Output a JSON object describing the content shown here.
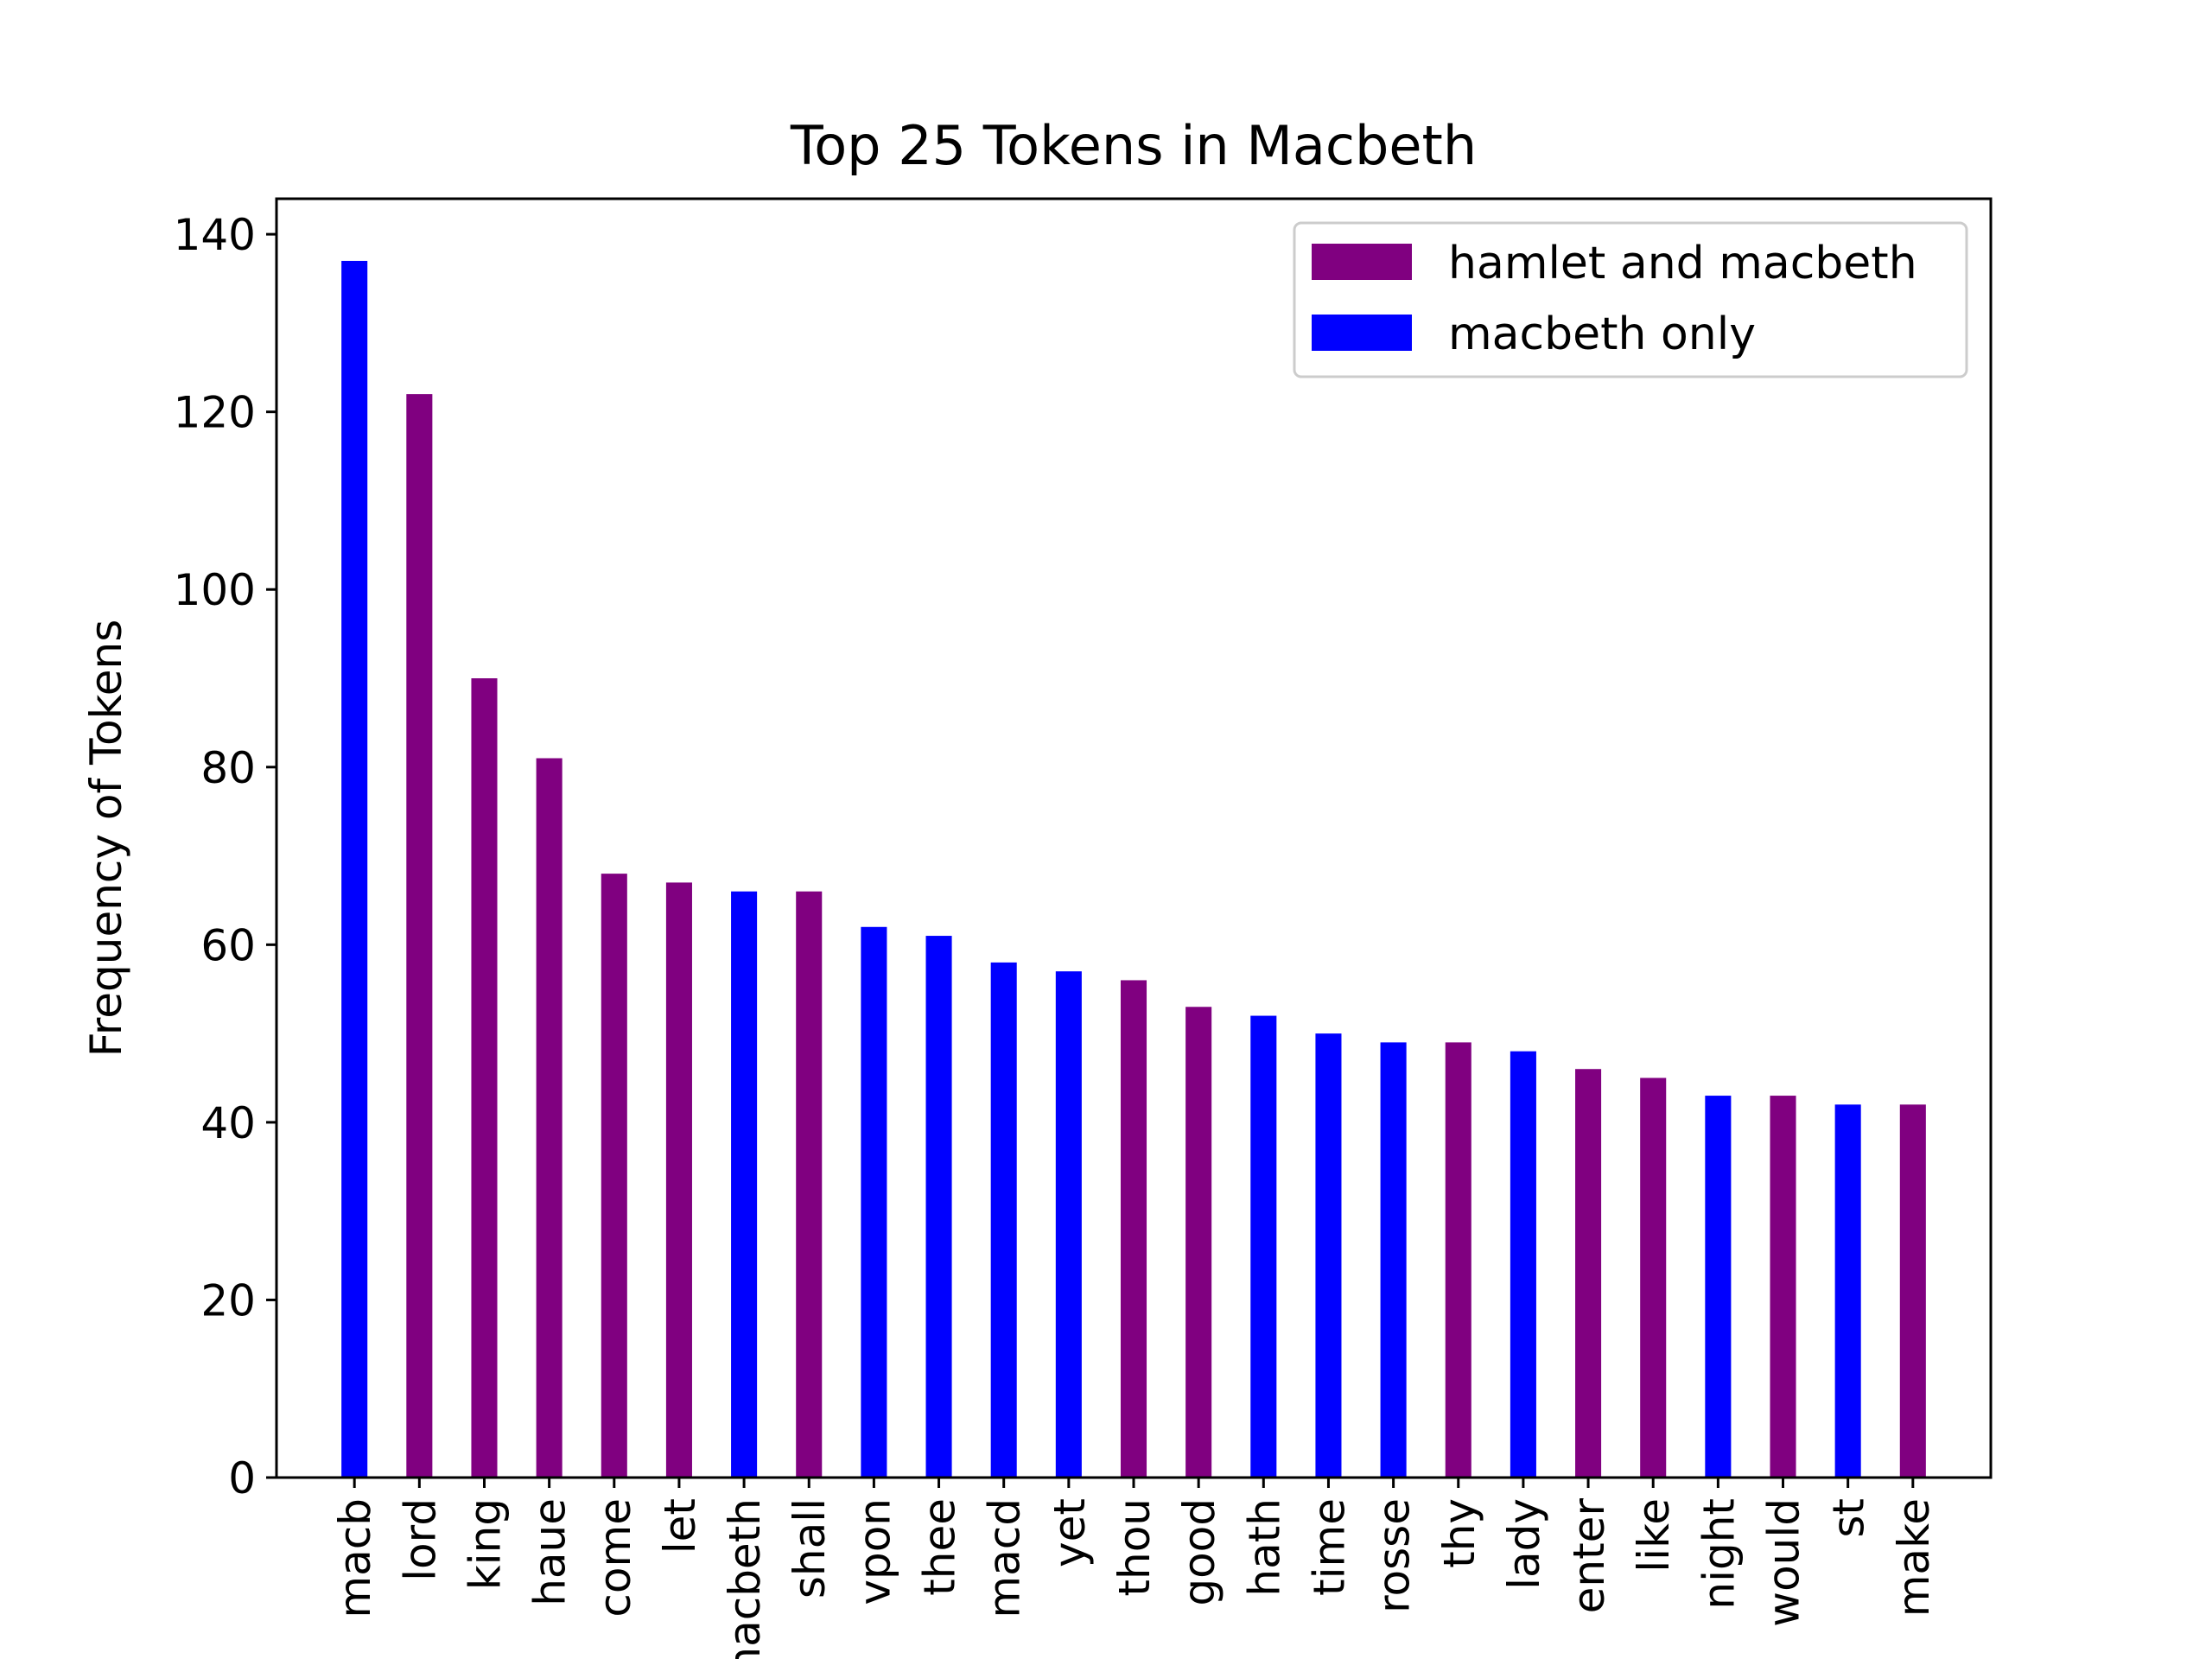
{
  "chart_data": {
    "type": "bar",
    "title": "Top 25 Tokens in Macbeth",
    "xlabel": "",
    "ylabel": "Frequency of Tokens",
    "ylim": [
      0,
      144
    ],
    "yticks": [
      0,
      20,
      40,
      60,
      80,
      100,
      120,
      140
    ],
    "categories": [
      "macb",
      "lord",
      "king",
      "haue",
      "come",
      "let",
      "macbeth",
      "shall",
      "vpon",
      "thee",
      "macd",
      "yet",
      "thou",
      "good",
      "hath",
      "time",
      "rosse",
      "thy",
      "lady",
      "enter",
      "like",
      "night",
      "would",
      "st",
      "make"
    ],
    "values": [
      137,
      122,
      90,
      81,
      68,
      67,
      66,
      66,
      62,
      61,
      58,
      57,
      56,
      53,
      52,
      50,
      49,
      49,
      48,
      46,
      45,
      43,
      43,
      42,
      42
    ],
    "groups": [
      "macbeth only",
      "hamlet and macbeth",
      "hamlet and macbeth",
      "hamlet and macbeth",
      "hamlet and macbeth",
      "hamlet and macbeth",
      "macbeth only",
      "hamlet and macbeth",
      "macbeth only",
      "macbeth only",
      "macbeth only",
      "macbeth only",
      "hamlet and macbeth",
      "hamlet and macbeth",
      "macbeth only",
      "macbeth only",
      "macbeth only",
      "hamlet and macbeth",
      "macbeth only",
      "hamlet and macbeth",
      "hamlet and macbeth",
      "macbeth only",
      "hamlet and macbeth",
      "macbeth only",
      "hamlet and macbeth"
    ],
    "legend": [
      {
        "name": "hamlet and macbeth",
        "color": "#800080"
      },
      {
        "name": "macbeth only",
        "color": "#0000ff"
      }
    ],
    "legend_position": "top-right",
    "grid": false
  }
}
